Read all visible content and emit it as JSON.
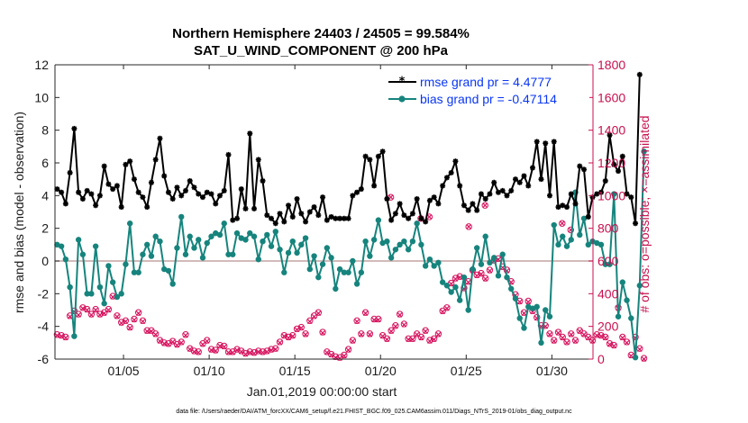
{
  "chart_data": {
    "type": "line",
    "title": "Northern Hemisphere 24403 / 24505 = 99.584%",
    "subtitle": "SAT_U_WIND_COMPONENT @ 200 hPa",
    "xlabel": "Jan.01,2019 00:00:00 start",
    "ylabel": "rmse and bias (model - observation)",
    "y2label": "# of obs: o=possible; ×=assimilated",
    "footer": "data file: /Users/raeder/DAI/ATM_forcXX/CAM6_setup/f.e21.FHIST_BGC.f09_025.CAM6assim.011/Diags_NTrS_2019-01/obs_diag_output.nc",
    "colors": {
      "rmse": "#000000",
      "bias": "#16847d",
      "obs": "#d6135e",
      "legend_text": "#0a36f5",
      "y2_axis": "#c8104f",
      "zero_line": "#c4a4a4"
    },
    "xlim": [
      1,
      32.4
    ],
    "x_ticks": [
      5,
      10,
      15,
      20,
      25,
      30
    ],
    "x_tick_labels": [
      "01/05",
      "01/10",
      "01/15",
      "01/20",
      "01/25",
      "01/30"
    ],
    "ylim": [
      -6,
      12
    ],
    "y_ticks": [
      -6,
      -4,
      -2,
      0,
      2,
      4,
      6,
      8,
      10,
      12
    ],
    "y2lim": [
      0,
      1800
    ],
    "y2_ticks": [
      0,
      200,
      400,
      600,
      800,
      1000,
      1200,
      1400,
      1600,
      1800
    ],
    "legend": [
      {
        "key": "rmse",
        "label": "rmse grand pr = 4.4777"
      },
      {
        "key": "bias",
        "label": "bias grand pr = -0.47114"
      }
    ],
    "series": [
      {
        "name": "rmse",
        "x0": 1.125,
        "dx": 0.25,
        "values": [
          4.4,
          4.2,
          3.5,
          5.4,
          8.1,
          4.2,
          3.8,
          4.3,
          4.1,
          3.4,
          4.0,
          5.8,
          4.7,
          4.4,
          4.6,
          3.3,
          5.9,
          6.1,
          5.0,
          4.2,
          3.9,
          3.3,
          4.8,
          6.2,
          7.5,
          5.2,
          4.2,
          3.8,
          4.5,
          4.0,
          4.3,
          4.9,
          4.5,
          4.1,
          3.9,
          4.2,
          4.1,
          3.5,
          4.0,
          4.3,
          6.5,
          2.5,
          2.6,
          4.4,
          3.2,
          7.8,
          3.2,
          6.2,
          4.9,
          2.8,
          2.6,
          2.3,
          2.9,
          2.4,
          3.4,
          2.7,
          3.8,
          2.9,
          2.4,
          3.0,
          3.3,
          2.8,
          3.9,
          2.5,
          2.7,
          2.6,
          2.6,
          2.6,
          2.6,
          4.0,
          4.2,
          4.4,
          6.4,
          6.2,
          4.6,
          6.4,
          6.7,
          3.8,
          2.5,
          2.9,
          3.5,
          2.8,
          2.6,
          2.9,
          3.8,
          2.6,
          2.4,
          3.7,
          3.9,
          3.5,
          4.6,
          5.1,
          5.4,
          6.1,
          4.6,
          3.4,
          3.1,
          3.5,
          3.1,
          4.1,
          3.8,
          4.1,
          4.8,
          4.2,
          4.3,
          4.0,
          4.3,
          5.0,
          4.8,
          5.2,
          4.6,
          5.7,
          7.3,
          5.0,
          7.2,
          4.0,
          7.3,
          3.3,
          3.4,
          3.3,
          4.1,
          3.5,
          5.8,
          5.6,
          2.7,
          3.9,
          4.1,
          4.2,
          4.9,
          7.7,
          5.9,
          5.5,
          6.4,
          4.1,
          3.9,
          2.3,
          11.4
        ]
      },
      {
        "name": "bias",
        "x0": 1.125,
        "dx": 0.25,
        "values": [
          1.0,
          0.9,
          0.1,
          -1.6,
          -4.6,
          1.3,
          0.4,
          -2.0,
          -2.0,
          0.9,
          -1.6,
          -2.6,
          -0.3,
          -1.3,
          -2.2,
          -2.0,
          -0.2,
          2.3,
          -0.7,
          -0.7,
          0.4,
          1.0,
          0.3,
          1.5,
          1.2,
          -0.5,
          -0.6,
          -1.4,
          0.8,
          2.7,
          0.4,
          1.5,
          0.8,
          1.3,
          0.2,
          1.1,
          1.5,
          1.7,
          1.6,
          2.3,
          0.4,
          0.4,
          1.7,
          1.4,
          1.3,
          1.7,
          1.5,
          0.1,
          1.2,
          1.6,
          0.9,
          1.8,
          0.7,
          -0.7,
          0.5,
          1.2,
          0.5,
          1.0,
          1.4,
          -0.5,
          0.3,
          -1.0,
          -0.2,
          0.8,
          0.2,
          -1.7,
          -0.5,
          -0.7,
          -0.7,
          0.0,
          -1.4,
          -0.7,
          1.2,
          0.3,
          1.3,
          2.5,
          1.1,
          1.2,
          0.2,
          0.7,
          1.0,
          1.2,
          0.7,
          1.2,
          2.3,
          1.0,
          -0.3,
          0.1,
          -0.3,
          -0.1,
          -1.3,
          -1.5,
          -1.9,
          -1.6,
          -2.4,
          -1.0,
          -3.0,
          -0.5,
          0.8,
          -0.2,
          1.5,
          -0.1,
          0.2,
          -0.9,
          0.4,
          -1.0,
          -1.7,
          -2.3,
          -3.5,
          -4.1,
          -2.8,
          -2.9,
          -2.8,
          -5.0,
          -3.0,
          -3.4,
          2.2,
          1.0,
          1.5,
          0.9,
          1.3,
          4.2,
          1.6,
          2.6,
          1.0,
          1.2,
          1.1,
          1.0,
          -0.2,
          -0.2,
          4.1,
          -3.4,
          -1.3,
          -2.4,
          -3.5,
          -5.9,
          -1.5,
          6.7
        ]
      },
      {
        "name": "obs_assimilated",
        "axis": "right",
        "x0": 1.125,
        "dx": 0.25,
        "values": [
          145,
          140,
          130,
          260,
          290,
          270,
          310,
          300,
          270,
          300,
          270,
          280,
          300,
          380,
          260,
          220,
          230,
          190,
          240,
          280,
          230,
          170,
          170,
          150,
          110,
          95,
          90,
          105,
          85,
          100,
          145,
          60,
          45,
          40,
          90,
          110,
          55,
          50,
          80,
          75,
          40,
          40,
          55,
          45,
          30,
          40,
          35,
          45,
          40,
          45,
          55,
          60,
          100,
          140,
          130,
          140,
          180,
          190,
          150,
          230,
          260,
          280,
          160,
          40,
          25,
          10,
          5,
          20,
          55,
          110,
          230,
          150,
          280,
          150,
          240,
          240,
          140,
          120,
          170,
          200,
          270,
          210,
          120,
          120,
          150,
          130,
          170,
          110,
          120,
          150,
          290,
          310,
          460,
          490,
          500,
          430,
          470,
          540,
          510,
          520,
          490,
          540,
          600,
          610,
          560,
          540,
          470,
          390,
          350,
          280,
          350,
          290,
          250,
          200,
          200,
          150,
          110,
          160,
          130,
          100,
          150,
          110,
          170,
          150,
          130,
          110,
          145,
          140,
          130,
          90,
          80,
          310,
          130,
          100,
          20,
          130,
          60,
          0
        ]
      },
      {
        "name": "obs_possible",
        "axis": "right",
        "x0": 1.125,
        "dx": 0.25,
        "values": [
          150,
          145,
          135,
          265,
          295,
          275,
          315,
          305,
          275,
          305,
          275,
          285,
          305,
          385,
          265,
          225,
          235,
          195,
          245,
          285,
          235,
          175,
          175,
          155,
          115,
          100,
          95,
          110,
          90,
          105,
          150,
          65,
          50,
          45,
          95,
          115,
          60,
          55,
          85,
          80,
          45,
          45,
          60,
          50,
          35,
          45,
          40,
          50,
          45,
          50,
          60,
          65,
          105,
          145,
          135,
          145,
          185,
          195,
          155,
          235,
          265,
          285,
          165,
          45,
          30,
          15,
          10,
          25,
          60,
          115,
          235,
          155,
          285,
          155,
          245,
          245,
          145,
          125,
          175,
          205,
          275,
          215,
          125,
          125,
          155,
          135,
          175,
          115,
          125,
          155,
          295,
          315,
          465,
          495,
          505,
          435,
          475,
          545,
          515,
          525,
          495,
          545,
          605,
          615,
          565,
          545,
          475,
          395,
          355,
          285,
          355,
          295,
          255,
          205,
          205,
          155,
          115,
          165,
          135,
          105,
          155,
          115,
          175,
          155,
          135,
          115,
          150,
          145,
          135,
          95,
          85,
          315,
          135,
          105,
          25,
          135,
          65,
          5
        ]
      }
    ],
    "extra_points": [
      {
        "series": "obs",
        "x": 20.6,
        "y2": 990
      },
      {
        "series": "obs",
        "x": 22.35,
        "y2": 860
      },
      {
        "series": "obs",
        "x": 22.85,
        "y2": 870
      },
      {
        "series": "obs",
        "x": 25.15,
        "y2": 810
      },
      {
        "series": "obs",
        "x": 26.1,
        "y2": 940
      },
      {
        "series": "obs",
        "x": 30.6,
        "y2": 830
      },
      {
        "series": "obs",
        "x": 31.1,
        "y2": 790
      }
    ]
  }
}
